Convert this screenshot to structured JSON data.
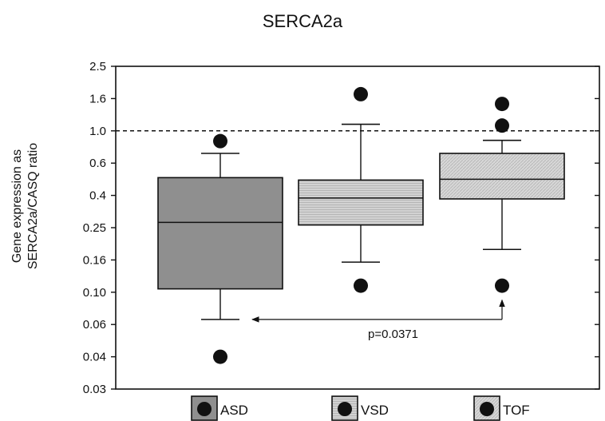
{
  "chart_data": {
    "type": "box",
    "title": "SERCA2a",
    "ylabel_line1": "Gene expression as",
    "ylabel_line2": "SERCA2a/CASQ ratio",
    "yscale": "log",
    "ylim": [
      0.03,
      2.5
    ],
    "yticks": [
      0.03,
      0.04,
      0.06,
      0.1,
      0.16,
      0.25,
      0.4,
      0.6,
      1.0,
      1.6,
      2.5
    ],
    "ytick_labels": [
      "0.03",
      "0.04",
      "0.06",
      "0.10",
      "0.16",
      "0.25",
      "0.4",
      "0.6",
      "1.0",
      "1.6",
      "2.5"
    ],
    "reference_line": 1.0,
    "grid": false,
    "legend_position": "bottom",
    "groups": [
      {
        "name": "ASD",
        "color": "#8f8f8f",
        "pattern": "dark",
        "whisker_low": 0.065,
        "q1": 0.105,
        "median": 0.27,
        "q3": 0.5,
        "whisker_high": 0.7,
        "outliers": [
          0.04,
          0.85
        ]
      },
      {
        "name": "VSD",
        "color": "#cfcfcf",
        "pattern": "hatch",
        "whisker_low": 0.155,
        "q1": 0.26,
        "median": 0.385,
        "q3": 0.485,
        "whisker_high": 1.1,
        "outliers": [
          0.11,
          1.7
        ]
      },
      {
        "name": "TOF",
        "color": "#dcdcdc",
        "pattern": "hatch",
        "whisker_low": 0.185,
        "q1": 0.38,
        "median": 0.49,
        "q3": 0.7,
        "whisker_high": 0.86,
        "outliers": [
          0.11,
          1.08,
          1.48
        ]
      }
    ],
    "annotation": {
      "text": "p=0.0371",
      "from_group": "TOF",
      "to_group": "ASD",
      "y": 0.065
    }
  }
}
